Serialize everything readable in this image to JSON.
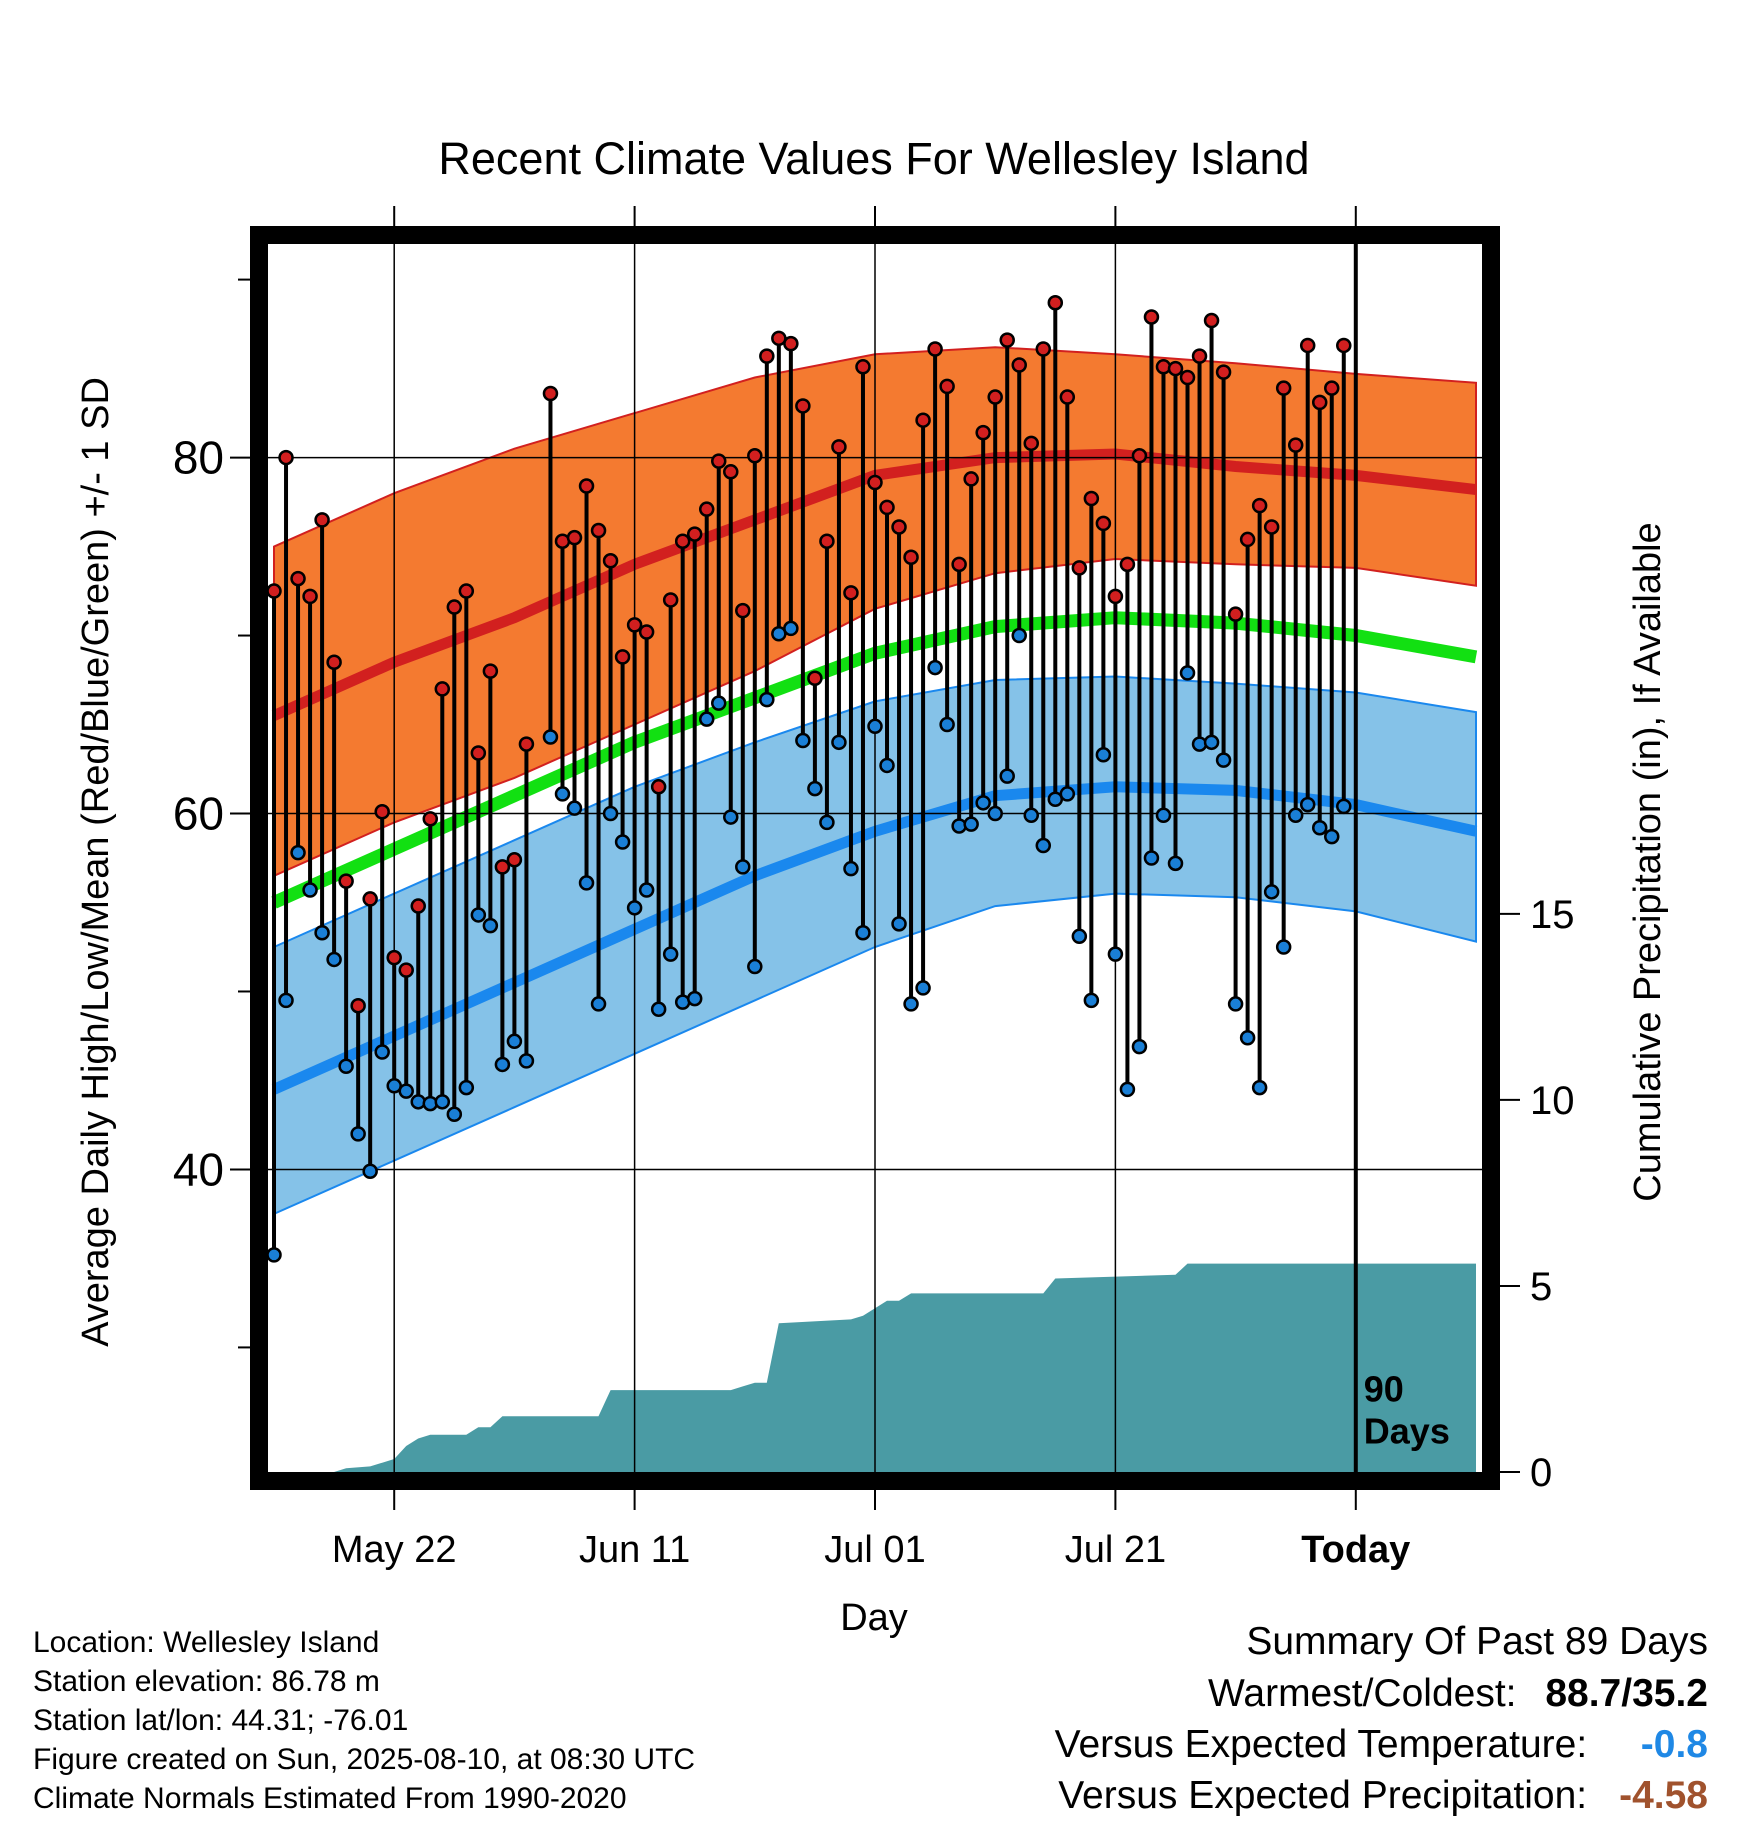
{
  "chart_data": {
    "type": "line",
    "title": "Recent Climate Values For Wellesley Island",
    "xlabel": "Day",
    "ylabel": "Average Daily High/Low/Mean (Red/Blue/Green) +/- 1 SD",
    "y2label": "Cumulative Precipitation (in), If Available",
    "ylim": [
      23,
      92
    ],
    "y2lim": [
      0,
      33
    ],
    "xlim": [
      -0.5,
      100.5
    ],
    "yticks": [
      40,
      60,
      80
    ],
    "yticks_minor": [
      30,
      50,
      70,
      90
    ],
    "y2ticks": [
      0,
      5,
      10,
      15
    ],
    "xtick_days": [
      10,
      30,
      50,
      70,
      90
    ],
    "xtick_labels": [
      "May 22",
      "Jun 11",
      "Jul 01",
      "Jul 21",
      "Today"
    ],
    "today_day": 90,
    "window_label": "90 Days",
    "normal_high": [
      [
        0,
        65.5
      ],
      [
        10,
        68.5
      ],
      [
        20,
        71
      ],
      [
        30,
        74
      ],
      [
        40,
        76.5
      ],
      [
        50,
        79
      ],
      [
        60,
        80
      ],
      [
        70,
        80.2
      ],
      [
        80,
        79.5
      ],
      [
        90,
        79
      ],
      [
        100,
        78.2
      ]
    ],
    "normal_high_band": {
      "upper": [
        [
          0,
          75
        ],
        [
          10,
          78
        ],
        [
          20,
          80.5
        ],
        [
          30,
          82.5
        ],
        [
          40,
          84.5
        ],
        [
          50,
          85.8
        ],
        [
          60,
          86.2
        ],
        [
          70,
          85.8
        ],
        [
          80,
          85.3
        ],
        [
          90,
          84.7
        ],
        [
          100,
          84.2
        ]
      ],
      "lower": [
        [
          0,
          56.5
        ],
        [
          10,
          59.5
        ],
        [
          20,
          62
        ],
        [
          30,
          65
        ],
        [
          40,
          68
        ],
        [
          50,
          71.5
        ],
        [
          60,
          73.5
        ],
        [
          70,
          74.3
        ],
        [
          80,
          74
        ],
        [
          90,
          73.8
        ],
        [
          100,
          72.8
        ]
      ]
    },
    "normal_mean": [
      [
        0,
        55
      ],
      [
        10,
        58
      ],
      [
        20,
        61
      ],
      [
        30,
        64
      ],
      [
        40,
        66.5
      ],
      [
        50,
        69
      ],
      [
        60,
        70.5
      ],
      [
        70,
        71
      ],
      [
        80,
        70.7
      ],
      [
        90,
        70
      ],
      [
        100,
        68.8
      ]
    ],
    "normal_low": [
      [
        0,
        44.5
      ],
      [
        10,
        47.5
      ],
      [
        20,
        50.5
      ],
      [
        30,
        53.5
      ],
      [
        40,
        56.5
      ],
      [
        50,
        59
      ],
      [
        60,
        61
      ],
      [
        70,
        61.5
      ],
      [
        80,
        61.3
      ],
      [
        90,
        60.5
      ],
      [
        100,
        59
      ]
    ],
    "normal_low_band": {
      "upper": [
        [
          0,
          52.5
        ],
        [
          10,
          55.5
        ],
        [
          20,
          58.5
        ],
        [
          30,
          61.5
        ],
        [
          40,
          64
        ],
        [
          50,
          66.3
        ],
        [
          60,
          67.5
        ],
        [
          70,
          67.7
        ],
        [
          80,
          67.3
        ],
        [
          90,
          66.8
        ],
        [
          100,
          65.7
        ]
      ],
      "lower": [
        [
          0,
          37.5
        ],
        [
          10,
          40.5
        ],
        [
          20,
          43.5
        ],
        [
          30,
          46.5
        ],
        [
          40,
          49.5
        ],
        [
          50,
          52.5
        ],
        [
          60,
          54.8
        ],
        [
          70,
          55.5
        ],
        [
          80,
          55.3
        ],
        [
          90,
          54.5
        ],
        [
          100,
          52.8
        ]
      ]
    },
    "daily": [
      {
        "day": 0,
        "high": 72.5,
        "low": 35.2
      },
      {
        "day": 1,
        "high": 80.0,
        "low": 49.5
      },
      {
        "day": 2,
        "high": 73.2,
        "low": 57.8
      },
      {
        "day": 3,
        "high": 72.2,
        "low": 55.7
      },
      {
        "day": 4,
        "high": 76.5,
        "low": 53.3
      },
      {
        "day": 5,
        "high": 68.5,
        "low": 51.8
      },
      {
        "day": 6,
        "high": 56.2,
        "low": 45.8
      },
      {
        "day": 7,
        "high": 49.2,
        "low": 42.0
      },
      {
        "day": 8,
        "high": 55.2,
        "low": 39.9
      },
      {
        "day": 9,
        "high": 60.1,
        "low": 46.6
      },
      {
        "day": 10,
        "high": 51.9,
        "low": 44.7
      },
      {
        "day": 11,
        "high": 51.2,
        "low": 44.4
      },
      {
        "day": 12,
        "high": 54.8,
        "low": 43.8
      },
      {
        "day": 13,
        "high": 59.7,
        "low": 43.7
      },
      {
        "day": 14,
        "high": 67.0,
        "low": 43.8
      },
      {
        "day": 15,
        "high": 71.6,
        "low": 43.1
      },
      {
        "day": 16,
        "high": 72.5,
        "low": 44.6
      },
      {
        "day": 17,
        "high": 63.4,
        "low": 54.3
      },
      {
        "day": 18,
        "high": 68.0,
        "low": 53.7
      },
      {
        "day": 19,
        "high": 57.0,
        "low": 45.9
      },
      {
        "day": 20,
        "high": 57.4,
        "low": 47.2
      },
      {
        "day": 21,
        "high": 63.9,
        "low": 46.1
      },
      {
        "day": 23,
        "high": 83.6,
        "low": 64.3
      },
      {
        "day": 24,
        "high": 75.3,
        "low": 61.1
      },
      {
        "day": 25,
        "high": 75.5,
        "low": 60.3
      },
      {
        "day": 26,
        "high": 78.4,
        "low": 56.1
      },
      {
        "day": 27,
        "high": 75.9,
        "low": 49.3
      },
      {
        "day": 28,
        "high": 74.2,
        "low": 60.0
      },
      {
        "day": 29,
        "high": 68.8,
        "low": 58.4
      },
      {
        "day": 30,
        "high": 70.6,
        "low": 54.7
      },
      {
        "day": 31,
        "high": 70.2,
        "low": 55.7
      },
      {
        "day": 32,
        "high": 61.5,
        "low": 49.0
      },
      {
        "day": 33,
        "high": 72.0,
        "low": 52.1
      },
      {
        "day": 34,
        "high": 75.3,
        "low": 49.4
      },
      {
        "day": 35,
        "high": 75.7,
        "low": 49.6
      },
      {
        "day": 36,
        "high": 77.1,
        "low": 65.3
      },
      {
        "day": 37,
        "high": 79.8,
        "low": 66.2
      },
      {
        "day": 38,
        "high": 79.2,
        "low": 59.8
      },
      {
        "day": 39,
        "high": 71.4,
        "low": 57.0
      },
      {
        "day": 40,
        "high": 80.1,
        "low": 51.4
      },
      {
        "day": 41,
        "high": 85.7,
        "low": 66.4
      },
      {
        "day": 42,
        "high": 86.7,
        "low": 70.1
      },
      {
        "day": 43,
        "high": 86.4,
        "low": 70.4
      },
      {
        "day": 44,
        "high": 82.9,
        "low": 64.1
      },
      {
        "day": 45,
        "high": 67.6,
        "low": 61.4
      },
      {
        "day": 46,
        "high": 75.3,
        "low": 59.5
      },
      {
        "day": 47,
        "high": 80.6,
        "low": 64.0
      },
      {
        "day": 48,
        "high": 72.4,
        "low": 56.9
      },
      {
        "day": 49,
        "high": 85.1,
        "low": 53.3
      },
      {
        "day": 50,
        "high": 78.6,
        "low": 64.9
      },
      {
        "day": 51,
        "high": 77.2,
        "low": 62.7
      },
      {
        "day": 52,
        "high": 76.1,
        "low": 53.8
      },
      {
        "day": 53,
        "high": 74.4,
        "low": 49.3
      },
      {
        "day": 54,
        "high": 82.1,
        "low": 50.2
      },
      {
        "day": 55,
        "high": 86.1,
        "low": 68.2
      },
      {
        "day": 56,
        "high": 84.0,
        "low": 65.0
      },
      {
        "day": 57,
        "high": 74.0,
        "low": 59.3
      },
      {
        "day": 58,
        "high": 78.8,
        "low": 59.4
      },
      {
        "day": 59,
        "high": 81.4,
        "low": 60.6
      },
      {
        "day": 60,
        "high": 83.4,
        "low": 60.0
      },
      {
        "day": 61,
        "high": 86.6,
        "low": 62.1
      },
      {
        "day": 62,
        "high": 85.2,
        "low": 70.0
      },
      {
        "day": 63,
        "high": 80.8,
        "low": 59.9
      },
      {
        "day": 64,
        "high": 86.1,
        "low": 58.2
      },
      {
        "day": 65,
        "high": 88.7,
        "low": 60.8
      },
      {
        "day": 66,
        "high": 83.4,
        "low": 61.1
      },
      {
        "day": 67,
        "high": 73.8,
        "low": 53.1
      },
      {
        "day": 68,
        "high": 77.7,
        "low": 49.5
      },
      {
        "day": 69,
        "high": 76.3,
        "low": 63.3
      },
      {
        "day": 70,
        "high": 72.2,
        "low": 52.1
      },
      {
        "day": 71,
        "high": 74.0,
        "low": 44.5
      },
      {
        "day": 72,
        "high": 80.1,
        "low": 46.9
      },
      {
        "day": 73,
        "high": 87.9,
        "low": 57.5
      },
      {
        "day": 74,
        "high": 85.1,
        "low": 59.9
      },
      {
        "day": 75,
        "high": 85.0,
        "low": 57.2
      },
      {
        "day": 76,
        "high": 84.5,
        "low": 67.9
      },
      {
        "day": 77,
        "high": 85.7,
        "low": 63.9
      },
      {
        "day": 78,
        "high": 87.7,
        "low": 64.0
      },
      {
        "day": 79,
        "high": 84.8,
        "low": 63.0
      },
      {
        "day": 80,
        "high": 71.2,
        "low": 49.3
      },
      {
        "day": 81,
        "high": 75.4,
        "low": 47.4
      },
      {
        "day": 82,
        "high": 77.3,
        "low": 44.6
      },
      {
        "day": 83,
        "high": 76.1,
        "low": 55.6
      },
      {
        "day": 84,
        "high": 83.9,
        "low": 52.5
      },
      {
        "day": 85,
        "high": 80.7,
        "low": 59.9
      },
      {
        "day": 86,
        "high": 86.3,
        "low": 60.5
      },
      {
        "day": 87,
        "high": 83.1,
        "low": 59.2
      },
      {
        "day": 88,
        "high": 83.9,
        "low": 58.7
      },
      {
        "day": 89,
        "high": 86.3,
        "low": 60.4
      }
    ],
    "precip_cumulative": [
      [
        0,
        0
      ],
      [
        5,
        0
      ],
      [
        6,
        0.1
      ],
      [
        8,
        0.15
      ],
      [
        9,
        0.25
      ],
      [
        10,
        0.35
      ],
      [
        11,
        0.7
      ],
      [
        12,
        0.9
      ],
      [
        13,
        1.0
      ],
      [
        16,
        1.0
      ],
      [
        17,
        1.2
      ],
      [
        18,
        1.2
      ],
      [
        19,
        1.5
      ],
      [
        27,
        1.5
      ],
      [
        28,
        2.2
      ],
      [
        38,
        2.2
      ],
      [
        39,
        2.3
      ],
      [
        40,
        2.4
      ],
      [
        41,
        2.4
      ],
      [
        42,
        4.0
      ],
      [
        48,
        4.1
      ],
      [
        49,
        4.2
      ],
      [
        50,
        4.4
      ],
      [
        51,
        4.6
      ],
      [
        52,
        4.6
      ],
      [
        53,
        4.8
      ],
      [
        64,
        4.8
      ],
      [
        65,
        5.2
      ],
      [
        75,
        5.3
      ],
      [
        76,
        5.6
      ],
      [
        90,
        5.6
      ],
      [
        100,
        5.6
      ]
    ],
    "colors": {
      "high_band": "#f47a30",
      "high_line": "#d2201f",
      "low_band": "#85c2e8",
      "low_line": "#1a88ee",
      "mean_line": "#12e012",
      "precip": "#4a9ba4",
      "high_point": "#d21f1f",
      "low_point": "#1a7fd6"
    }
  },
  "info": {
    "location": "Location: Wellesley Island",
    "elevation": "Station elevation: 86.78 m",
    "latlon": "Station lat/lon: 44.31; -76.01",
    "created": "Figure created on Sun, 2025-08-10, at 08:30 UTC",
    "normals": "Climate Normals Estimated From 1990-2020"
  },
  "summary": {
    "title": "Summary Of Past 89 Days",
    "warmest_label": "Warmest/Coldest:",
    "warmest_value": "88.7/35.2",
    "temp_label": "Versus Expected Temperature:",
    "temp_value": "-0.8",
    "temp_color": "#1f88e5",
    "precip_label": "Versus Expected Precipitation:",
    "precip_value": "-4.58",
    "precip_color": "#a0522d"
  }
}
